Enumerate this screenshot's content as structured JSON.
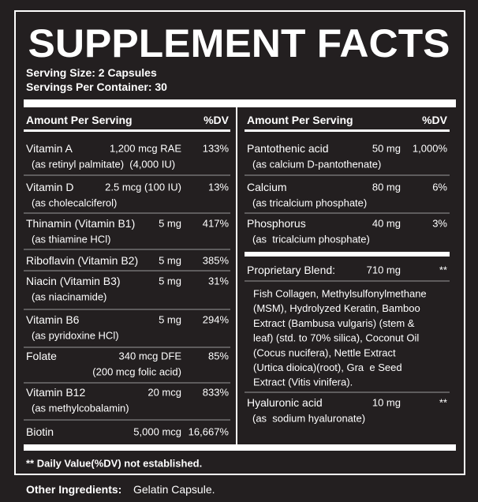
{
  "header": {
    "title": "SUPPLEMENT FACTS",
    "serving_size": "Serving Size: 2 Capsules",
    "servings_per_container": "Servings Per Container: 30"
  },
  "left_column": {
    "header": {
      "amount": "Amount Per Serving",
      "dv": "%DV"
    },
    "rows": [
      {
        "name": "Vitamin A",
        "amount": "1,200 mcg RAE",
        "dv": "133%",
        "sub": "(as retinyl palmitate)  (4,000 IU)"
      },
      {
        "name": "Vitamin D",
        "amount": "2.5 mcg (100 IU)",
        "dv": "13%",
        "sub": "(as cholecalciferol)"
      },
      {
        "name": "Thinamin (Vitamin B1)",
        "amount": "5 mg",
        "dv": "417%",
        "sub": "(as thiamine HCl)"
      },
      {
        "name": "Riboflavin (Vitamin B2)",
        "amount": "5 mg",
        "dv": "385%"
      },
      {
        "name": "Niacin (Vitamin B3)",
        "amount": "5 mg",
        "dv": "31%",
        "sub": "(as niacinamide)"
      },
      {
        "name": "Vitamin B6",
        "amount": "5 mg",
        "dv": "294%",
        "sub": "(as pyridoxine HCl)"
      },
      {
        "name": "Folate",
        "amount": "340 mcg DFE",
        "dv": "85%",
        "sub_right": "(200 mcg folic acid)"
      },
      {
        "name": "Vitamin B12",
        "amount": "20 mcg",
        "dv": "833%",
        "sub": "(as methylcobalamin)"
      },
      {
        "name": "Biotin",
        "amount": "5,000 mcg",
        "dv": "16,667%"
      }
    ]
  },
  "right_column": {
    "header": {
      "amount": "Amount Per Serving",
      "dv": "%DV"
    },
    "rows": [
      {
        "name": "Pantothenic acid",
        "amount": "50 mg",
        "dv": "1,000%",
        "sub": "(as calcium D-pantothenate)"
      },
      {
        "name": "Calcium",
        "amount": "80 mg",
        "dv": "6%",
        "sub": "(as tricalcium phosphate)"
      },
      {
        "name": "Phosphorus",
        "amount": "40 mg",
        "dv": "3%",
        "sub": "(as  tricalcium phosphate)"
      }
    ],
    "blend": {
      "name": "Proprietary Blend:",
      "amount": "710 mg",
      "dv": "**",
      "lines": [
        "Fish Collagen, Methylsulfonylmethane",
        "(MSM), Hydrolyzed Keratin, Bamboo",
        "Extract (Bambusa vulgaris) (stem &",
        "leaf) (std. to 70% silica), Coconut Oil",
        "(Cocus nucifera), Nettle Extract",
        "(Urtica dioica)(root), Gra  e Seed",
        "Extract (Vitis vinifera)."
      ]
    },
    "rows_after": [
      {
        "name": "Hyaluronic acid",
        "amount": "10 mg",
        "dv": "**",
        "sub": "(as  sodium hyaluronate)"
      }
    ]
  },
  "footnote": "** Daily Value(%DV) not established.",
  "other_ingredients": {
    "label": "Other Ingredients:",
    "text": "Gelatin Capsule."
  }
}
